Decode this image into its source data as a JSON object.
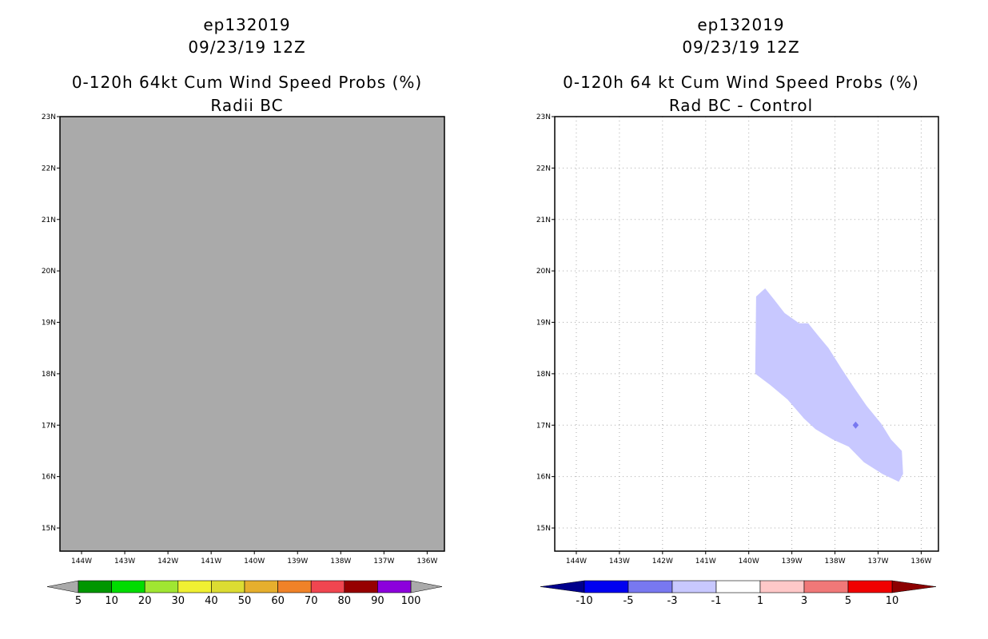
{
  "chart_data": [
    {
      "type": "map",
      "storm_id": "ep132019",
      "datetime": "09/23/19 12Z",
      "title": "0-120h 64kt Cum Wind Speed Probs (%)",
      "subtitle": "Radii BC",
      "lon_ticks": [
        "144W",
        "143W",
        "142W",
        "141W",
        "140W",
        "139W",
        "138W",
        "137W",
        "136W"
      ],
      "lat_ticks": [
        "15N",
        "16N",
        "17N",
        "18N",
        "19N",
        "20N",
        "21N",
        "22N",
        "23N"
      ],
      "lon_range": [
        -144.5,
        -135.6
      ],
      "lat_range": [
        14.55,
        23.0
      ],
      "field": "uniform gray (no data / background)",
      "fill_color": "#aaaaaa",
      "colorbar": {
        "labels": [
          "5",
          "10",
          "20",
          "30",
          "40",
          "50",
          "60",
          "70",
          "80",
          "90",
          "100"
        ],
        "colors": [
          "#009600",
          "#00dc00",
          "#a0e632",
          "#f0f032",
          "#dcdc32",
          "#e6af2d",
          "#f08228",
          "#f04650",
          "#960000",
          "#8c00dc"
        ],
        "under_color": "#aaaaaa",
        "over_color": "#aaaaaa"
      }
    },
    {
      "type": "map",
      "storm_id": "ep132019",
      "datetime": "09/23/19 12Z",
      "title": "0-120h 64 kt Cum Wind Speed Probs (%)",
      "subtitle": "Rad BC - Control",
      "lon_ticks": [
        "144W",
        "143W",
        "142W",
        "141W",
        "140W",
        "139W",
        "138W",
        "137W",
        "136W"
      ],
      "lat_ticks": [
        "15N",
        "16N",
        "17N",
        "18N",
        "19N",
        "20N",
        "21N",
        "22N",
        "23N"
      ],
      "lon_range": [
        -144.5,
        -135.6
      ],
      "lat_range": [
        14.55,
        23.0
      ],
      "grid": true,
      "contours": [
        {
          "level": "-3 to -1",
          "color": "#c8c8ff",
          "points": [
            [
              -139.83,
              19.5
            ],
            [
              -139.62,
              19.66
            ],
            [
              -139.42,
              19.45
            ],
            [
              -139.17,
              19.18
            ],
            [
              -138.83,
              18.98
            ],
            [
              -138.62,
              18.98
            ],
            [
              -138.37,
              18.72
            ],
            [
              -138.15,
              18.5
            ],
            [
              -137.85,
              18.1
            ],
            [
              -137.55,
              17.72
            ],
            [
              -137.27,
              17.38
            ],
            [
              -136.93,
              17.03
            ],
            [
              -136.7,
              16.72
            ],
            [
              -136.45,
              16.5
            ],
            [
              -136.42,
              16.05
            ],
            [
              -136.52,
              15.9
            ],
            [
              -136.9,
              16.05
            ],
            [
              -137.33,
              16.28
            ],
            [
              -137.68,
              16.58
            ],
            [
              -138.05,
              16.72
            ],
            [
              -138.45,
              16.92
            ],
            [
              -138.72,
              17.13
            ],
            [
              -139.1,
              17.5
            ],
            [
              -139.5,
              17.78
            ],
            [
              -139.85,
              18.0
            ]
          ]
        },
        {
          "level": "-5 to -3",
          "color": "#7878f0",
          "points": [
            [
              -137.52,
              17.07
            ],
            [
              -137.45,
              17.0
            ],
            [
              -137.52,
              16.93
            ],
            [
              -137.59,
              17.0
            ]
          ]
        }
      ],
      "colorbar": {
        "labels": [
          "-10",
          "-5",
          "-3",
          "-1",
          "1",
          "3",
          "5",
          "10"
        ],
        "colors": [
          "#0000f0",
          "#7878f0",
          "#c8c8ff",
          "#ffffff",
          "#ffc8c8",
          "#f07878",
          "#f00000"
        ],
        "under_color": "#00008c",
        "over_color": "#8c0000"
      }
    }
  ]
}
